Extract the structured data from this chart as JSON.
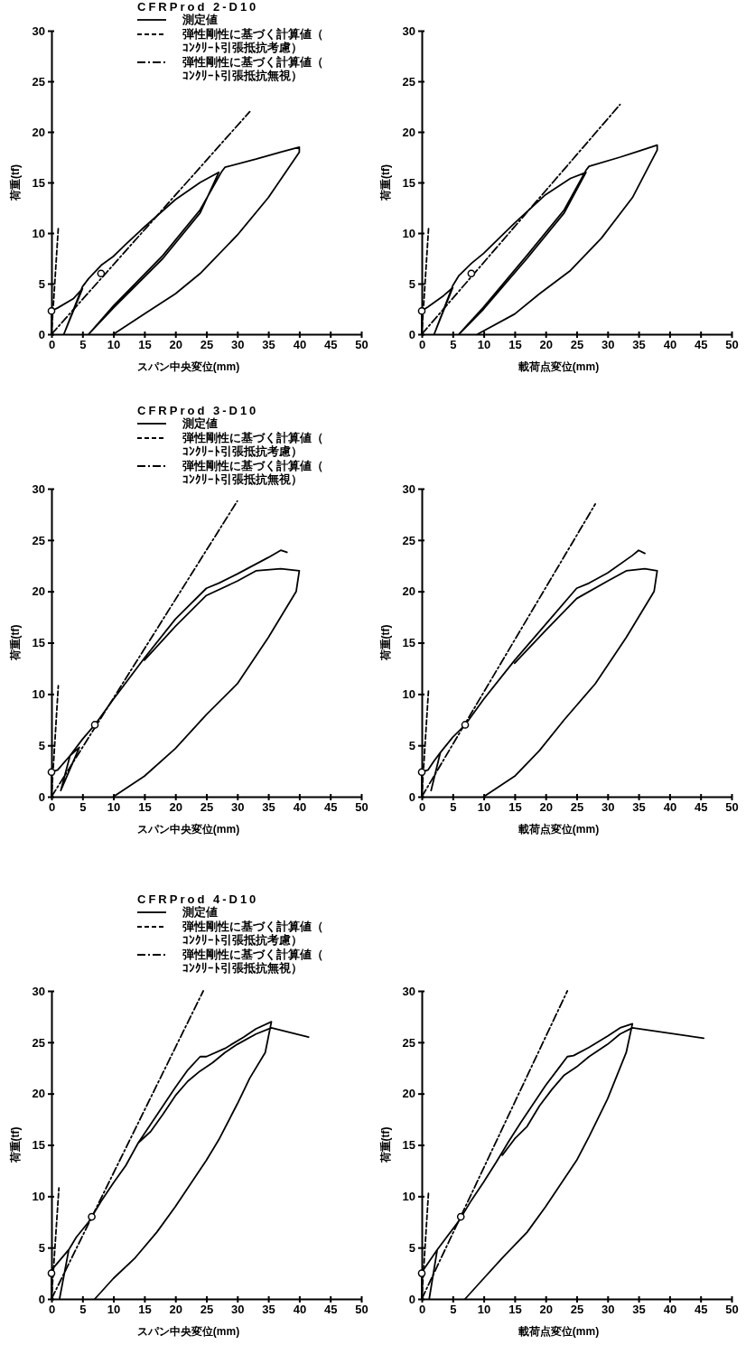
{
  "chart_data": [
    {
      "type": "line",
      "title": "CFRProd 2-D10",
      "xlabel": "スパン中央変位(mm)",
      "ylabel": "荷重(tf)",
      "xlim": [
        0,
        50
      ],
      "ylim": [
        0,
        30
      ],
      "xticks": [
        0,
        5,
        10,
        15,
        20,
        25,
        30,
        35,
        40,
        45,
        50
      ],
      "yticks": [
        0,
        5,
        10,
        15,
        20,
        25,
        30
      ],
      "legend": "top",
      "series": [
        {
          "name": "測定値",
          "color": "#000000",
          "line_style": "solid",
          "x": [
            0,
            0,
            1,
            3.5,
            5,
            2,
            5,
            6,
            8,
            10,
            12,
            15,
            20,
            24,
            27,
            24,
            18,
            10,
            6,
            10,
            18,
            24,
            27.5,
            28,
            33,
            37,
            40,
            40,
            35,
            30,
            24,
            20,
            15,
            10
          ],
          "values": [
            0,
            2.3,
            2.6,
            3.5,
            4.5,
            0,
            4.7,
            5.5,
            6.8,
            7.7,
            8.9,
            10.6,
            13.3,
            15,
            16,
            12,
            7.5,
            2.6,
            0,
            2.8,
            7.8,
            12.3,
            16.1,
            16.5,
            17.3,
            18,
            18.5,
            18,
            13.5,
            9.8,
            6,
            4,
            2,
            0
          ]
        },
        {
          "name": "弾性剛性に基づく計算値（ｺﾝｸﾘｰﾄ引張抵抗考慮）",
          "color": "#000000",
          "line_style": "dashed",
          "x": [
            0,
            1.1
          ],
          "values": [
            0,
            10.5
          ]
        },
        {
          "name": "弾性剛性に基づく計算値（ｺﾝｸﾘｰﾄ引張抵抗無視）",
          "color": "#000000",
          "line_style": "dashdot",
          "x": [
            0,
            32
          ],
          "values": [
            0,
            22
          ]
        },
        {
          "type": "scatter",
          "marker": "circle",
          "color": "#000000",
          "x": [
            0,
            8
          ],
          "values": [
            2.3,
            6
          ]
        }
      ]
    },
    {
      "type": "line",
      "xlabel": "載荷点変位(mm)",
      "ylabel": "荷重(tf)",
      "xlim": [
        0,
        50
      ],
      "ylim": [
        0,
        30
      ],
      "xticks": [
        0,
        5,
        10,
        15,
        20,
        25,
        30,
        35,
        40,
        45,
        50
      ],
      "yticks": [
        0,
        5,
        10,
        15,
        20,
        25,
        30
      ],
      "series": [
        {
          "color": "#000000",
          "line_style": "solid",
          "x": [
            0,
            0,
            1,
            3.5,
            5,
            2,
            5,
            6,
            8,
            10,
            15,
            20,
            24,
            26.5,
            23,
            17,
            10,
            6,
            10,
            17,
            23,
            26.5,
            27,
            32,
            35,
            38,
            38,
            34,
            29,
            24,
            19,
            15,
            9
          ],
          "values": [
            0,
            2.3,
            2.7,
            3.8,
            4.6,
            0,
            4.8,
            5.8,
            7,
            8,
            11,
            13.8,
            15.4,
            16,
            12,
            7.5,
            2.5,
            0,
            2.7,
            7.8,
            12.3,
            16.2,
            16.6,
            17.5,
            18.1,
            18.7,
            18.2,
            13.5,
            9.5,
            6.3,
            4,
            2,
            0
          ]
        },
        {
          "color": "#000000",
          "line_style": "dashed",
          "x": [
            0,
            1.1
          ],
          "values": [
            0,
            10.5
          ]
        },
        {
          "color": "#000000",
          "line_style": "dashdot",
          "x": [
            0,
            32
          ],
          "values": [
            0,
            22.7
          ]
        },
        {
          "type": "scatter",
          "marker": "circle",
          "color": "#000000",
          "x": [
            0,
            8
          ],
          "values": [
            2.3,
            6
          ]
        }
      ]
    },
    {
      "type": "line",
      "title": "CFRProd 3-D10",
      "xlabel": "スパン中央変位(mm)",
      "ylabel": "荷重(tf)",
      "xlim": [
        0,
        50
      ],
      "ylim": [
        0,
        30
      ],
      "xticks": [
        0,
        5,
        10,
        15,
        20,
        25,
        30,
        35,
        40,
        45,
        50
      ],
      "yticks": [
        0,
        5,
        10,
        15,
        20,
        25,
        30
      ],
      "legend": "top",
      "series": [
        {
          "name": "測定値",
          "color": "#000000",
          "line_style": "solid",
          "x": [
            0,
            0,
            1,
            3,
            4.5,
            1.5,
            3,
            5,
            7,
            10,
            15,
            20,
            25,
            27,
            30,
            35,
            37,
            38,
            null,
            15,
            20,
            25,
            30,
            33,
            37,
            40,
            39.5,
            35,
            30,
            25,
            20,
            15,
            10
          ],
          "values": [
            0,
            2.4,
            2.6,
            4,
            4.8,
            0.6,
            4,
            5.6,
            7,
            9.5,
            13.5,
            17.3,
            20.3,
            20.8,
            21.7,
            23.3,
            24,
            23.8,
            null,
            13.3,
            16.6,
            19.6,
            21,
            22,
            22.2,
            22,
            20,
            15.5,
            11,
            8,
            4.7,
            2,
            0
          ]
        },
        {
          "name": "弾性剛性に基づく計算値（ｺﾝｸﾘｰﾄ引張抵抗考慮）",
          "color": "#000000",
          "line_style": "dashed",
          "x": [
            0,
            1.1
          ],
          "values": [
            0,
            10.8
          ]
        },
        {
          "name": "弾性剛性に基づく計算値（ｺﾝｸﾘｰﾄ引張抵抗無視）",
          "color": "#000000",
          "line_style": "dashdot",
          "x": [
            0,
            30
          ],
          "values": [
            0,
            28.8
          ]
        },
        {
          "type": "scatter",
          "marker": "circle",
          "color": "#000000",
          "x": [
            0,
            7
          ],
          "values": [
            2.4,
            7
          ]
        }
      ]
    },
    {
      "type": "line",
      "xlabel": "載荷点変位(mm)",
      "ylabel": "荷重(tf)",
      "xlim": [
        0,
        50
      ],
      "ylim": [
        0,
        30
      ],
      "xticks": [
        0,
        5,
        10,
        15,
        20,
        25,
        30,
        35,
        40,
        45,
        50
      ],
      "yticks": [
        0,
        5,
        10,
        15,
        20,
        25,
        30
      ],
      "series": [
        {
          "color": "#000000",
          "line_style": "solid",
          "x": [
            0,
            0,
            1,
            2,
            3,
            1.5,
            3,
            5,
            7,
            10,
            15,
            20,
            25,
            27,
            30,
            34,
            35,
            36,
            null,
            15,
            20,
            25,
            30,
            33,
            36,
            38,
            37.5,
            33,
            28,
            23,
            19,
            15,
            10
          ],
          "values": [
            0,
            2.4,
            2.6,
            3.5,
            4.3,
            0.6,
            4.3,
            5.8,
            7,
            9.5,
            13.3,
            16.8,
            20.3,
            20.8,
            21.8,
            23.5,
            24,
            23.7,
            null,
            13,
            16.2,
            19.3,
            21,
            22,
            22.2,
            22,
            20,
            15.5,
            11,
            7.5,
            4.5,
            2,
            0
          ]
        },
        {
          "color": "#000000",
          "line_style": "dashed",
          "x": [
            0,
            1.1
          ],
          "values": [
            0,
            10.5
          ]
        },
        {
          "color": "#000000",
          "line_style": "dashdot",
          "x": [
            0,
            28
          ],
          "values": [
            0,
            28.5
          ]
        },
        {
          "type": "scatter",
          "marker": "circle",
          "color": "#000000",
          "x": [
            0,
            7
          ],
          "values": [
            2.4,
            7
          ]
        }
      ]
    },
    {
      "type": "line",
      "title": "CFRProd 4-D10",
      "xlabel": "スパン中央変位(mm)",
      "ylabel": "荷重(tf)",
      "xlim": [
        0,
        50
      ],
      "ylim": [
        0,
        30
      ],
      "xticks": [
        0,
        5,
        10,
        15,
        20,
        25,
        30,
        35,
        40,
        45,
        50
      ],
      "yticks": [
        0,
        5,
        10,
        15,
        20,
        25,
        30
      ],
      "legend": "top",
      "series": [
        {
          "name": "測定値",
          "color": "#000000",
          "line_style": "solid",
          "x": [
            0,
            0,
            2.8,
            1.3,
            2.8,
            4,
            6,
            8,
            10,
            12,
            14,
            16,
            18,
            20,
            22,
            24,
            25,
            28,
            31,
            33,
            35.5,
            34.5,
            32,
            30,
            27,
            25,
            22,
            20,
            17,
            13.5,
            10,
            7,
            null,
            14,
            16,
            18,
            20,
            22,
            24,
            26,
            28,
            30,
            33,
            35.5,
            41.5
          ],
          "values": [
            0,
            2.8,
            4.8,
            0,
            4.8,
            6,
            7.5,
            9.5,
            11.3,
            13,
            15.2,
            17,
            18.8,
            20.6,
            22.3,
            23.6,
            23.6,
            24.4,
            25.5,
            26.3,
            27,
            24,
            21.5,
            19,
            15.5,
            13.5,
            10.8,
            9,
            6.5,
            4,
            2,
            0,
            null,
            15.2,
            16.3,
            18,
            19.8,
            21.2,
            22.2,
            23,
            24,
            24.8,
            25.8,
            26.4,
            25.5
          ]
        },
        {
          "name": "弾性剛性に基づく計算値（ｺﾝｸﾘｰﾄ引張抵抗考慮）",
          "color": "#000000",
          "line_style": "dashed",
          "x": [
            0,
            1.2
          ],
          "values": [
            0,
            10.8
          ]
        },
        {
          "name": "弾性剛性に基づく計算値（ｺﾝｸﾘｰﾄ引張抵抗無視）",
          "color": "#000000",
          "line_style": "dashdot",
          "x": [
            0,
            24.5
          ],
          "values": [
            0,
            30
          ]
        },
        {
          "type": "scatter",
          "marker": "circle",
          "color": "#000000",
          "x": [
            0,
            6.5
          ],
          "values": [
            2.5,
            8
          ]
        }
      ]
    },
    {
      "type": "line",
      "xlabel": "載荷点変位(mm)",
      "ylabel": "荷重(tf)",
      "xlim": [
        0,
        50
      ],
      "ylim": [
        0,
        30
      ],
      "xticks": [
        0,
        5,
        10,
        15,
        20,
        25,
        30,
        35,
        40,
        45,
        50
      ],
      "yticks": [
        0,
        5,
        10,
        15,
        20,
        25,
        30
      ],
      "series": [
        {
          "color": "#000000",
          "line_style": "solid",
          "x": [
            0,
            0,
            2.5,
            1.2,
            2.5,
            4,
            6,
            8,
            10,
            12,
            14,
            16,
            18,
            20,
            22,
            23.5,
            24.5,
            27,
            30,
            32,
            34,
            33,
            30,
            27,
            25,
            22,
            20,
            17,
            13,
            10,
            7,
            null,
            13,
            15,
            17,
            19,
            21,
            23,
            25,
            27,
            30,
            32,
            34,
            45.5
          ],
          "values": [
            0,
            2.6,
            4.8,
            0,
            4.8,
            6,
            7.6,
            9.6,
            11.4,
            13.3,
            15.3,
            17.2,
            19,
            20.8,
            22.4,
            23.6,
            23.7,
            24.5,
            25.6,
            26.4,
            26.8,
            24,
            19.5,
            15.8,
            13.5,
            10.8,
            9,
            6.5,
            4,
            2,
            0,
            null,
            14,
            15.6,
            16.8,
            18.8,
            20.4,
            21.8,
            22.6,
            23.6,
            24.8,
            25.8,
            26.4,
            25.4
          ]
        },
        {
          "color": "#000000",
          "line_style": "dashed",
          "x": [
            0,
            1.1
          ],
          "values": [
            0,
            10.5
          ]
        },
        {
          "color": "#000000",
          "line_style": "dashdot",
          "x": [
            0,
            23.5
          ],
          "values": [
            0,
            30
          ]
        },
        {
          "type": "scatter",
          "marker": "circle",
          "color": "#000000",
          "x": [
            0,
            6.3
          ],
          "values": [
            2.5,
            8
          ]
        }
      ]
    }
  ]
}
